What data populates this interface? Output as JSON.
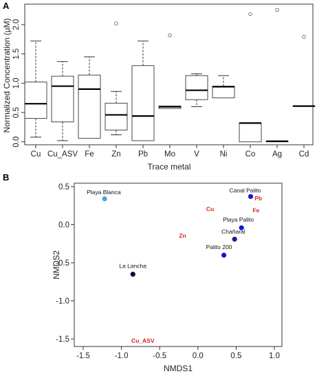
{
  "chart_data": [
    {
      "panel": "A",
      "type": "box",
      "xlabel": "Trace metal",
      "ylabel": "Normalized Concentration (µM)",
      "ylim": [
        -0.05,
        2.35
      ],
      "yticks": [
        "0.0",
        "0.5",
        "1.0",
        "1.5",
        "2.0"
      ],
      "categories": [
        "Cu",
        "Cu_ASV",
        "Fe",
        "Zn",
        "Pb",
        "Mo",
        "V",
        "Ni",
        "Co",
        "Ag",
        "Cd"
      ],
      "boxes": [
        {
          "min": 0.08,
          "q1": 0.4,
          "median": 0.65,
          "q3": 1.02,
          "max": 1.72,
          "outliers": []
        },
        {
          "min": 0.02,
          "q1": 0.34,
          "median": 0.95,
          "q3": 1.12,
          "max": 1.37,
          "outliers": []
        },
        {
          "min": 0.06,
          "q1": 0.06,
          "median": 0.9,
          "q3": 1.14,
          "max": 1.45,
          "outliers": []
        },
        {
          "min": 0.12,
          "q1": 0.2,
          "median": 0.46,
          "q3": 0.66,
          "max": 0.86,
          "outliers": [
            2.02
          ]
        },
        {
          "min": 0.02,
          "q1": 0.02,
          "median": 0.44,
          "q3": 1.3,
          "max": 1.72,
          "outliers": []
        },
        {
          "min": 0.57,
          "q1": 0.57,
          "median": 0.6,
          "q3": 0.61,
          "max": 0.61,
          "outliers": [
            1.82
          ]
        },
        {
          "min": 0.6,
          "q1": 0.72,
          "median": 0.88,
          "q3": 1.13,
          "max": 1.16,
          "outliers": []
        },
        {
          "min": 0.75,
          "q1": 0.75,
          "median": 0.94,
          "q3": 0.95,
          "max": 1.13,
          "outliers": []
        },
        {
          "min": 0.0,
          "q1": 0.0,
          "median": 0.32,
          "q3": 0.32,
          "max": 0.32,
          "outliers": [
            2.18
          ]
        },
        {
          "min": 0.0,
          "q1": 0.0,
          "median": 0.01,
          "q3": 0.01,
          "max": 0.01,
          "outliers": [
            2.25
          ]
        },
        {
          "min": 0.61,
          "q1": 0.61,
          "median": 0.61,
          "q3": 0.61,
          "max": 0.61,
          "outliers": [
            1.79
          ]
        }
      ]
    },
    {
      "panel": "B",
      "type": "scatter",
      "xlabel": "NMDS1",
      "ylabel": "NMDS2",
      "xlim": [
        -1.5,
        1.05
      ],
      "ylim": [
        -1.68,
        0.52
      ],
      "xticks": [
        "-1.5",
        "-1.0",
        "-0.5",
        "0.0",
        "0.5",
        "1.0"
      ],
      "yticks": [
        "-1.5",
        "-1.0",
        "-0.5",
        "0.0",
        "0.5"
      ],
      "sites": [
        {
          "label": "Playa Blanca",
          "x": -1.22,
          "y": 0.34,
          "color": "#4aa3df"
        },
        {
          "label": "Canal Palito",
          "x": 0.69,
          "y": 0.37,
          "color": "#1414d6"
        },
        {
          "label": "Playa Palito",
          "x": 0.57,
          "y": -0.04,
          "color": "#1414d6"
        },
        {
          "label": "Chañaral",
          "x": 0.48,
          "y": -0.19,
          "color": "#1a1a8c"
        },
        {
          "label": "Palito 200",
          "x": 0.34,
          "y": -0.4,
          "color": "#1414d6"
        },
        {
          "label": "La Lancha",
          "x": -0.85,
          "y": -0.65,
          "color": "#0b0b40"
        }
      ],
      "variables": [
        {
          "label": "Pb",
          "x": 0.79,
          "y": 0.32
        },
        {
          "label": "Cu",
          "x": 0.16,
          "y": 0.18
        },
        {
          "label": "Fe",
          "x": 0.76,
          "y": 0.16
        },
        {
          "label": "Zn",
          "x": -0.2,
          "y": -0.17
        },
        {
          "label": "Cu_ASV",
          "x": -0.72,
          "y": -1.55
        }
      ]
    }
  ]
}
